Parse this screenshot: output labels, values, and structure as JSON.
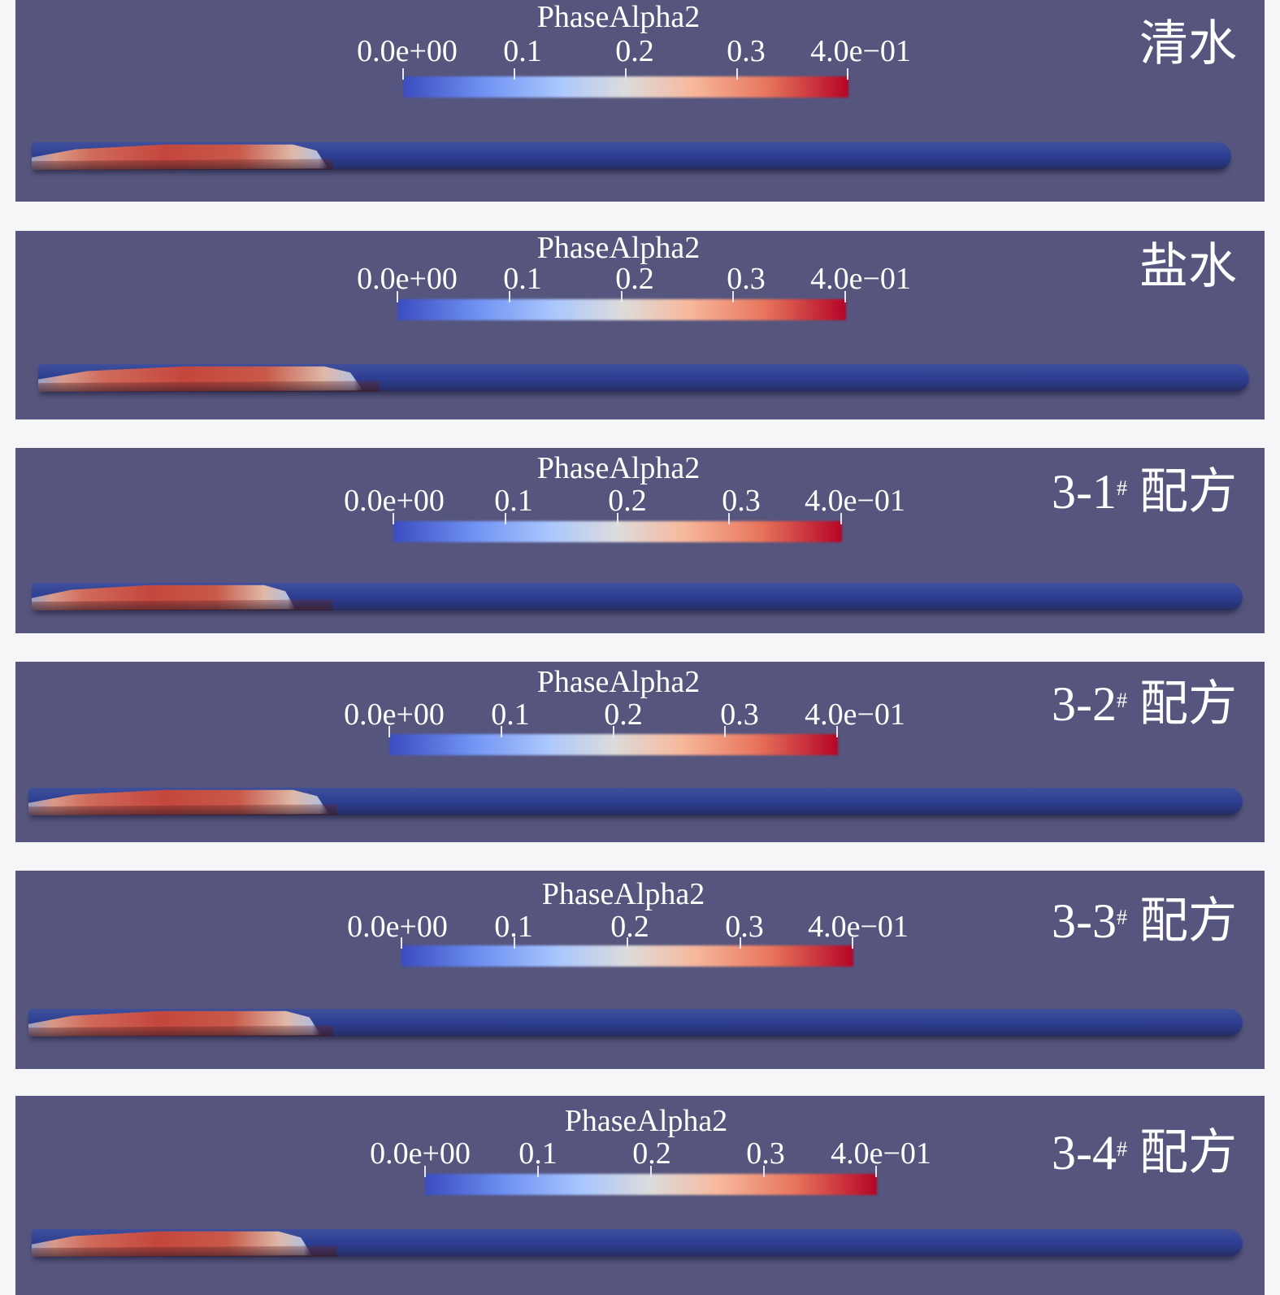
{
  "colorbar": {
    "title": "PhaseAlpha2",
    "ticks": [
      "0.0e+00",
      "0.1",
      "0.2",
      "0.3",
      "4.0e−01"
    ],
    "range": [
      0.0,
      0.4
    ],
    "colormap": [
      "#3b4cc0",
      "#dddcdc",
      "#b40426"
    ]
  },
  "panels": [
    {
      "label": "清水",
      "suffix": ""
    },
    {
      "label": "盐水",
      "suffix": ""
    },
    {
      "label": "3-1",
      "suffix": "配方",
      "mark": "#"
    },
    {
      "label": "3-2",
      "suffix": "配方",
      "mark": "#"
    },
    {
      "label": "3-3",
      "suffix": "配方",
      "mark": "#"
    },
    {
      "label": "3-4",
      "suffix": "配方",
      "mark": "#"
    }
  ],
  "colors": {
    "panel_background": "#56557d",
    "page_background": "#f6f6f8"
  }
}
